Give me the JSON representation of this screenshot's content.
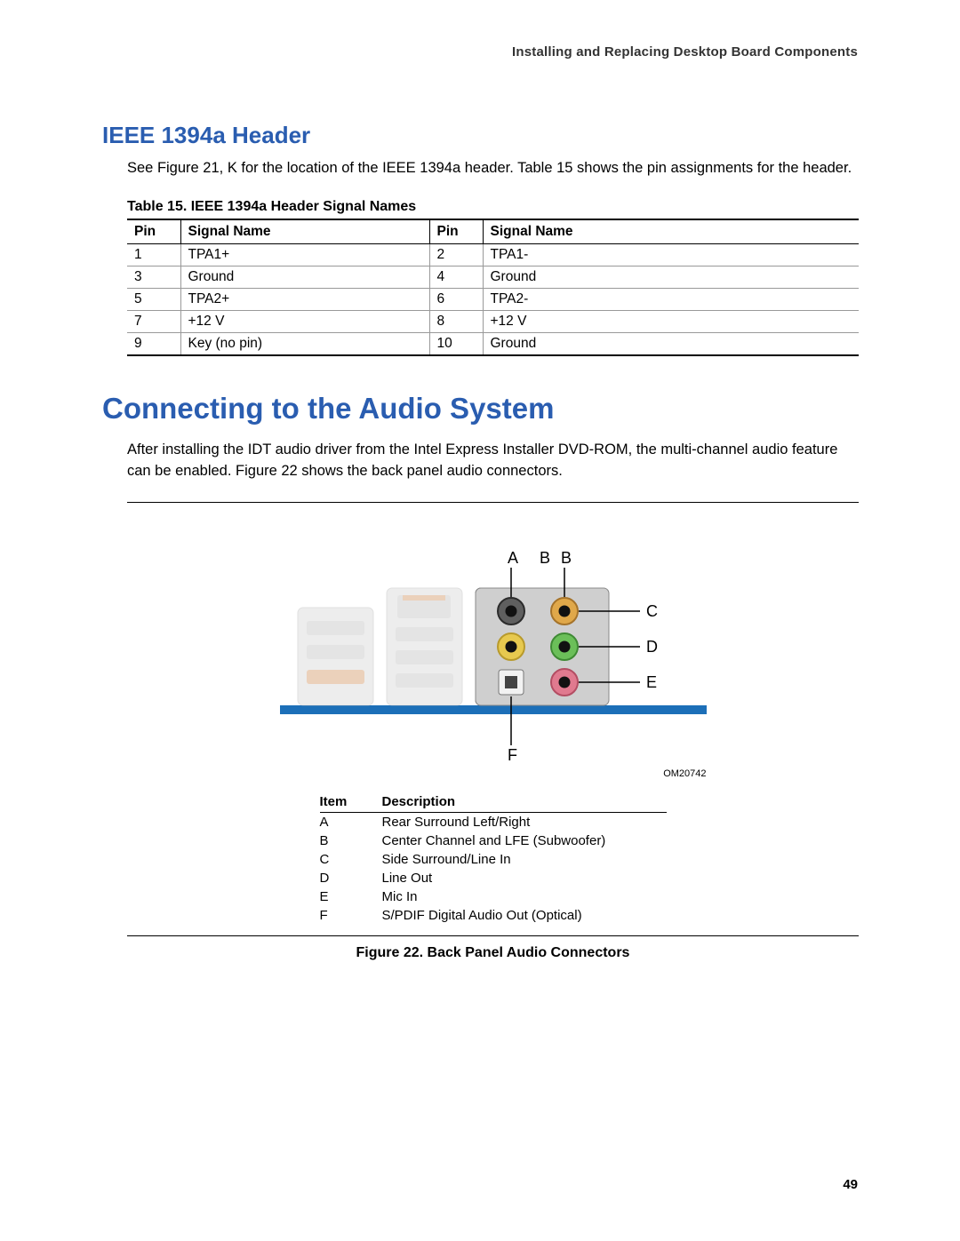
{
  "page": {
    "running_header": "Installing and Replacing Desktop Board Components",
    "page_number": "49"
  },
  "section1": {
    "heading": "IEEE 1394a Header",
    "intro": "See Figure 21, K for the location of the IEEE 1394a header.  Table 15 shows the pin assignments for the header."
  },
  "table15": {
    "caption": "Table 15. IEEE 1394a Header Signal Names",
    "headers": {
      "pin": "Pin",
      "signal": "Signal Name"
    },
    "rows": [
      {
        "p1": "1",
        "s1": "TPA1+",
        "p2": "2",
        "s2": "TPA1-"
      },
      {
        "p1": "3",
        "s1": "Ground",
        "p2": "4",
        "s2": "Ground"
      },
      {
        "p1": "5",
        "s1": "TPA2+",
        "p2": "6",
        "s2": "TPA2-"
      },
      {
        "p1": "7",
        "s1": "+12 V",
        "p2": "8",
        "s2": "+12 V"
      },
      {
        "p1": "9",
        "s1": "Key (no pin)",
        "p2": "10",
        "s2": "Ground"
      }
    ]
  },
  "section2": {
    "heading": "Connecting to the Audio System",
    "intro": "After installing the IDT audio driver from the Intel Express Installer DVD-ROM, the multi-channel audio feature can be enabled.  Figure 22 shows the back panel audio connectors."
  },
  "figure22": {
    "caption": "Figure 22.  Back Panel Audio Connectors",
    "om_label": "OM20742",
    "callouts": {
      "A": "A",
      "B": "B",
      "C": "C",
      "D": "D",
      "E": "E",
      "F": "F"
    },
    "jack_colors": {
      "A": "#5f5f5f",
      "B": "#e0a84a",
      "C": "#4a7cc9",
      "D": "#6bbf59",
      "E": "#e07a8f",
      "optical_body": "#f2f2f2",
      "panel_fill": "#cfcfcf",
      "panel_shadow": "#a8a8a8",
      "base_bar": "#1c6fb8"
    },
    "desc_table": {
      "headers": {
        "item": "Item",
        "desc": "Description"
      },
      "rows": [
        {
          "item": "A",
          "desc": "Rear Surround Left/Right"
        },
        {
          "item": "B",
          "desc": "Center Channel and LFE (Subwoofer)"
        },
        {
          "item": "C",
          "desc": "Side Surround/Line In"
        },
        {
          "item": "D",
          "desc": "Line Out"
        },
        {
          "item": "E",
          "desc": "Mic In"
        },
        {
          "item": "F",
          "desc": "S/PDIF Digital Audio Out (Optical)"
        }
      ]
    }
  }
}
